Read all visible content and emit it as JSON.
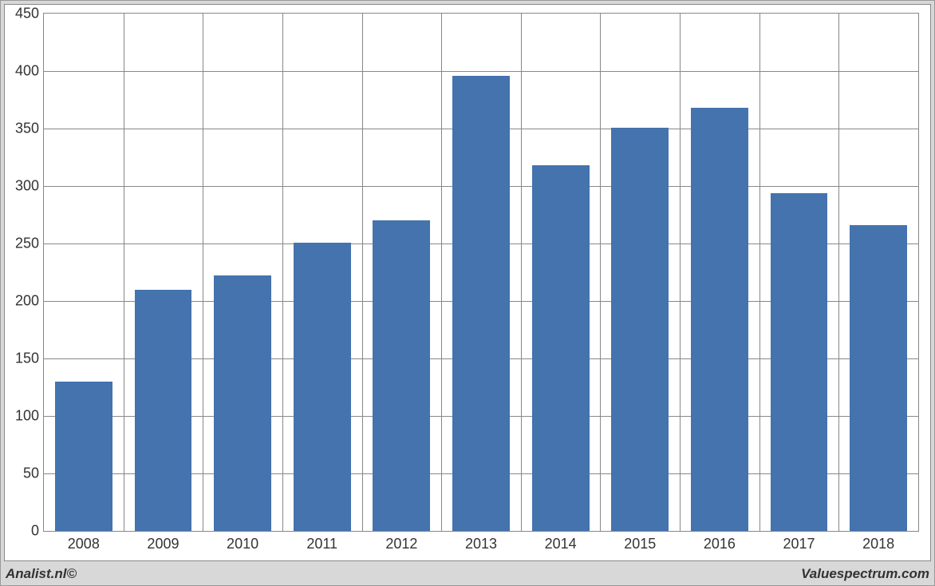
{
  "chart": {
    "type": "bar",
    "categories": [
      "2008",
      "2009",
      "2010",
      "2011",
      "2012",
      "2013",
      "2014",
      "2015",
      "2016",
      "2017",
      "2018"
    ],
    "values": [
      130,
      210,
      222,
      251,
      270,
      396,
      318,
      351,
      368,
      294,
      266
    ],
    "bar_color": "#4473ad",
    "background_color": "#ffffff",
    "outer_background_color": "#d8d8d8",
    "grid_color": "#888888",
    "border_color": "#888888",
    "ylim": [
      0,
      450
    ],
    "ytick_step": 50,
    "yticks": [
      0,
      50,
      100,
      150,
      200,
      250,
      300,
      350,
      400,
      450
    ],
    "tick_fontsize": 18,
    "bar_width_ratio": 0.72
  },
  "footer": {
    "left": "Analist.nl©",
    "right": "Valuespectrum.com"
  }
}
